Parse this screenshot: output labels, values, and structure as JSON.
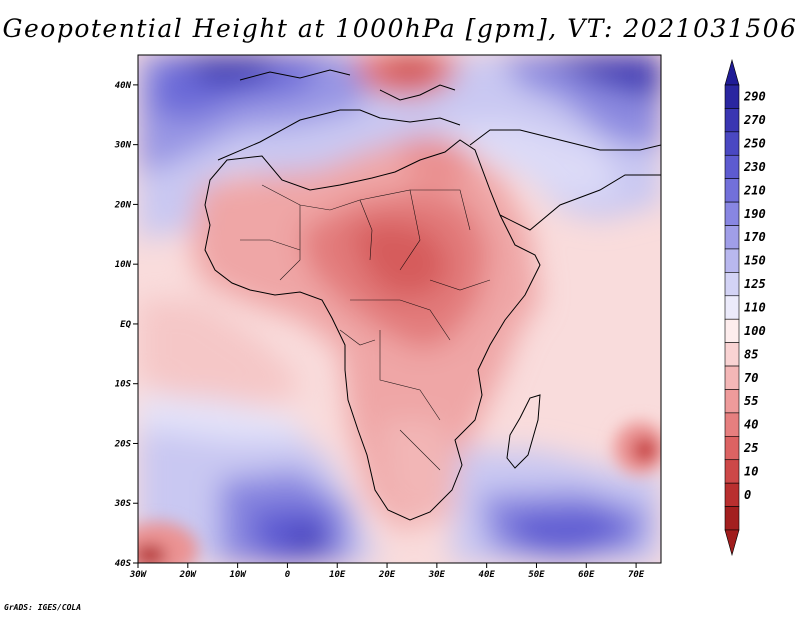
{
  "title": "Geopotential Height at 1000hPa [gpm], VT: 2021031506",
  "credit": "GrADS: IGES/COLA",
  "map": {
    "lon_range": [
      -30,
      75
    ],
    "lat_range": [
      -40,
      45
    ],
    "lat_ticks": [
      {
        "lat": 40,
        "label": "40N"
      },
      {
        "lat": 30,
        "label": "30N"
      },
      {
        "lat": 20,
        "label": "20N"
      },
      {
        "lat": 10,
        "label": "10N"
      },
      {
        "lat": 0,
        "label": "EQ"
      },
      {
        "lat": -10,
        "label": "10S"
      },
      {
        "lat": -20,
        "label": "20S"
      },
      {
        "lat": -30,
        "label": "30S"
      },
      {
        "lat": -40,
        "label": "40S"
      }
    ],
    "lon_ticks": [
      {
        "lon": -30,
        "label": "30W"
      },
      {
        "lon": -20,
        "label": "20W"
      },
      {
        "lon": -10,
        "label": "10W"
      },
      {
        "lon": 0,
        "label": "0"
      },
      {
        "lon": 10,
        "label": "10E"
      },
      {
        "lon": 20,
        "label": "20E"
      },
      {
        "lon": 30,
        "label": "30E"
      },
      {
        "lon": 40,
        "label": "40E"
      },
      {
        "lon": 50,
        "label": "50E"
      },
      {
        "lon": 60,
        "label": "60E"
      },
      {
        "lon": 70,
        "label": "70E"
      }
    ]
  },
  "colorbar": {
    "levels": [
      {
        "label": "290",
        "color": "#2a26a0"
      },
      {
        "label": "270",
        "color": "#3a36b2"
      },
      {
        "label": "250",
        "color": "#4a48c2"
      },
      {
        "label": "230",
        "color": "#5d5bd0"
      },
      {
        "label": "210",
        "color": "#7270da"
      },
      {
        "label": "190",
        "color": "#8886e2"
      },
      {
        "label": "170",
        "color": "#a09ee8"
      },
      {
        "label": "150",
        "color": "#b9b8ef"
      },
      {
        "label": "125",
        "color": "#d3d3f5"
      },
      {
        "label": "110",
        "color": "#ecebfb"
      },
      {
        "label": "100",
        "color": "#fdeded"
      },
      {
        "label": "85",
        "color": "#f9d3d3"
      },
      {
        "label": "70",
        "color": "#f4b7b7"
      },
      {
        "label": "55",
        "color": "#ee9b9b"
      },
      {
        "label": "40",
        "color": "#e67f7f"
      },
      {
        "label": "25",
        "color": "#dc6363"
      },
      {
        "label": "10",
        "color": "#cd4848"
      },
      {
        "label": "0",
        "color": "#b92f2f"
      },
      {
        "label": "",
        "color": "#a31f1f"
      }
    ],
    "top_cap_color": "#201c96",
    "bottom_cap_color": "#a01d1d"
  }
}
